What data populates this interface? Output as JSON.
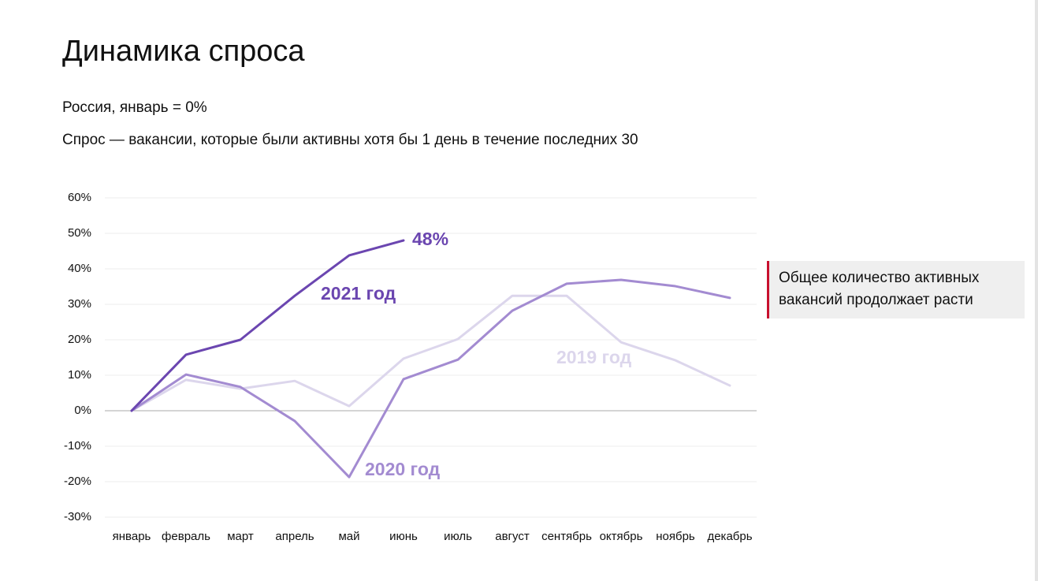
{
  "chart_data": {
    "type": "line",
    "title": "Динамика спроса",
    "subtitle": "Россия, январь = 0%",
    "description": "Спрос — вакансии, которые были активны хотя бы 1 день в течение последних 30",
    "annotation": "Общее количество активных вакансий продолжает расти",
    "categories": [
      "январь",
      "февраль",
      "март",
      "апрель",
      "май",
      "июнь",
      "июль",
      "август",
      "сентябрь",
      "октябрь",
      "ноябрь",
      "декабрь"
    ],
    "series": [
      {
        "name": "2021 год",
        "color": "#6b46b0",
        "values": [
          0,
          15.8,
          20,
          32.4,
          43.8,
          48,
          null,
          null,
          null,
          null,
          null,
          null
        ],
        "value_labels": [
          null,
          null,
          null,
          null,
          null,
          "48%",
          null,
          null,
          null,
          null,
          null,
          null
        ]
      },
      {
        "name": "2020 год",
        "color": "#a38bd1",
        "values": [
          0,
          10.2,
          6.7,
          -2.9,
          -18.7,
          8.9,
          14.4,
          28.2,
          35.8,
          36.9,
          35.1,
          31.8
        ]
      },
      {
        "name": "2019 год",
        "color": "#dcd6ec",
        "values": [
          0,
          8.7,
          6.2,
          8.4,
          1.3,
          14.7,
          20.2,
          32.4,
          32.4,
          19.3,
          14.2,
          7.1
        ]
      }
    ],
    "ylim": [
      -30,
      60
    ],
    "yticks": [
      {
        "value": -30,
        "label": "-30%"
      },
      {
        "value": -20,
        "label": "-20%"
      },
      {
        "value": -10,
        "label": "-10%"
      },
      {
        "value": 0,
        "label": "0%"
      },
      {
        "value": 10,
        "label": "10%"
      },
      {
        "value": 20,
        "label": "20%"
      },
      {
        "value": 30,
        "label": "30%"
      },
      {
        "value": 40,
        "label": "40%"
      },
      {
        "value": 50,
        "label": "50%"
      },
      {
        "value": 60,
        "label": "60%"
      }
    ],
    "grid": true
  }
}
